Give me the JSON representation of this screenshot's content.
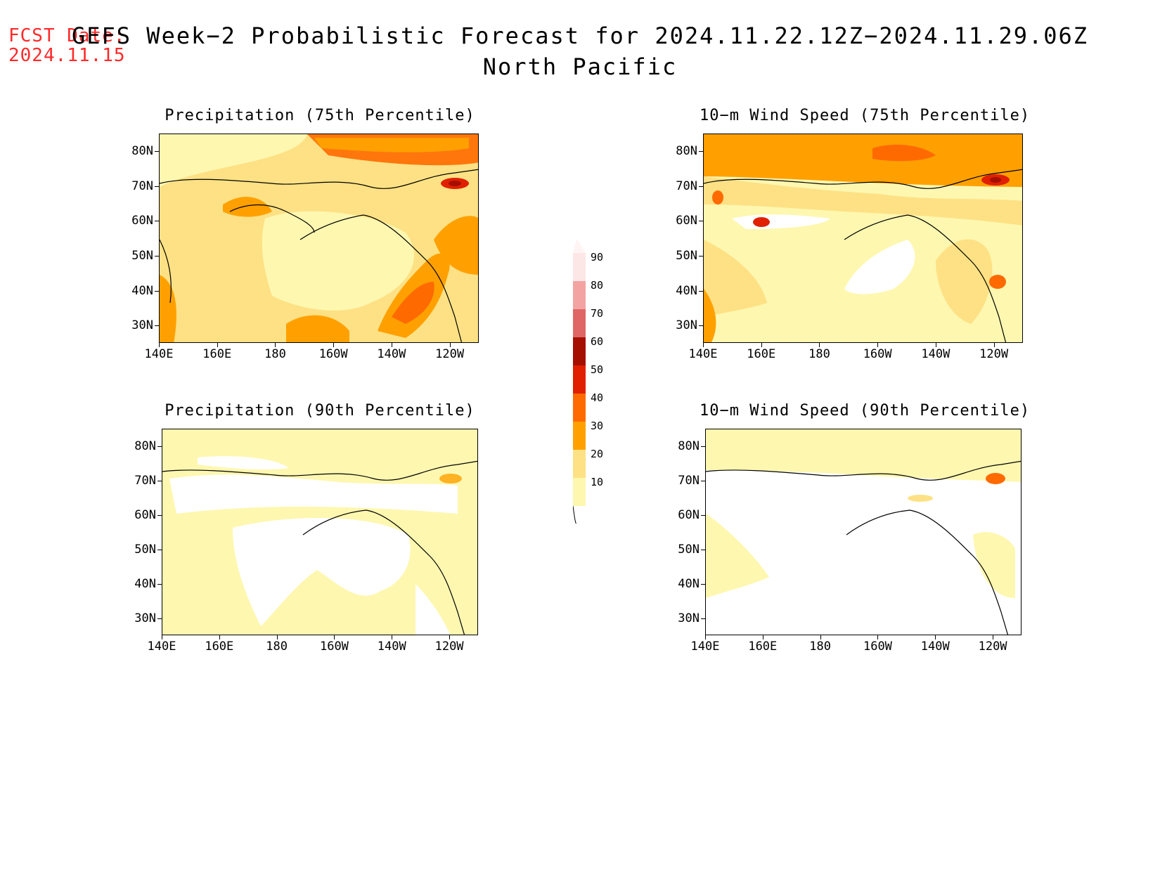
{
  "header": {
    "fcst_label": "FCST Date:",
    "fcst_date": "2024.11.15",
    "title_line1": "GEFS Week−2 Probabilistic Forecast for 2024.11.22.12Z−2024.11.29.06Z",
    "title_line2": "North Pacific"
  },
  "axes": {
    "lat_labels": [
      "80N",
      "70N",
      "60N",
      "50N",
      "40N",
      "30N"
    ],
    "lon_labels": [
      "140E",
      "160E",
      "180",
      "160W",
      "140W",
      "120W"
    ]
  },
  "panels": [
    {
      "id": "precip75",
      "title": "Precipitation (75th Percentile)",
      "base_color": "#fde184"
    },
    {
      "id": "wind75",
      "title": "10−m Wind Speed (75th Percentile)",
      "base_color": "#fef7b0"
    },
    {
      "id": "precip90",
      "title": "Precipitation (90th Percentile)",
      "base_color": "#fef7b0"
    },
    {
      "id": "wind90",
      "title": "10−m Wind Speed (90th Percentile)",
      "base_color": "#ffffff"
    }
  ],
  "colorbar": {
    "labels": [
      "90",
      "80",
      "70",
      "60",
      "50",
      "40",
      "30",
      "20",
      "10"
    ],
    "colors": [
      "#fde6e6",
      "#f4a3a3",
      "#e06666",
      "#a50f00",
      "#e02000",
      "#ff6a00",
      "#ffa000",
      "#fde184",
      "#fef7b0"
    ]
  }
}
